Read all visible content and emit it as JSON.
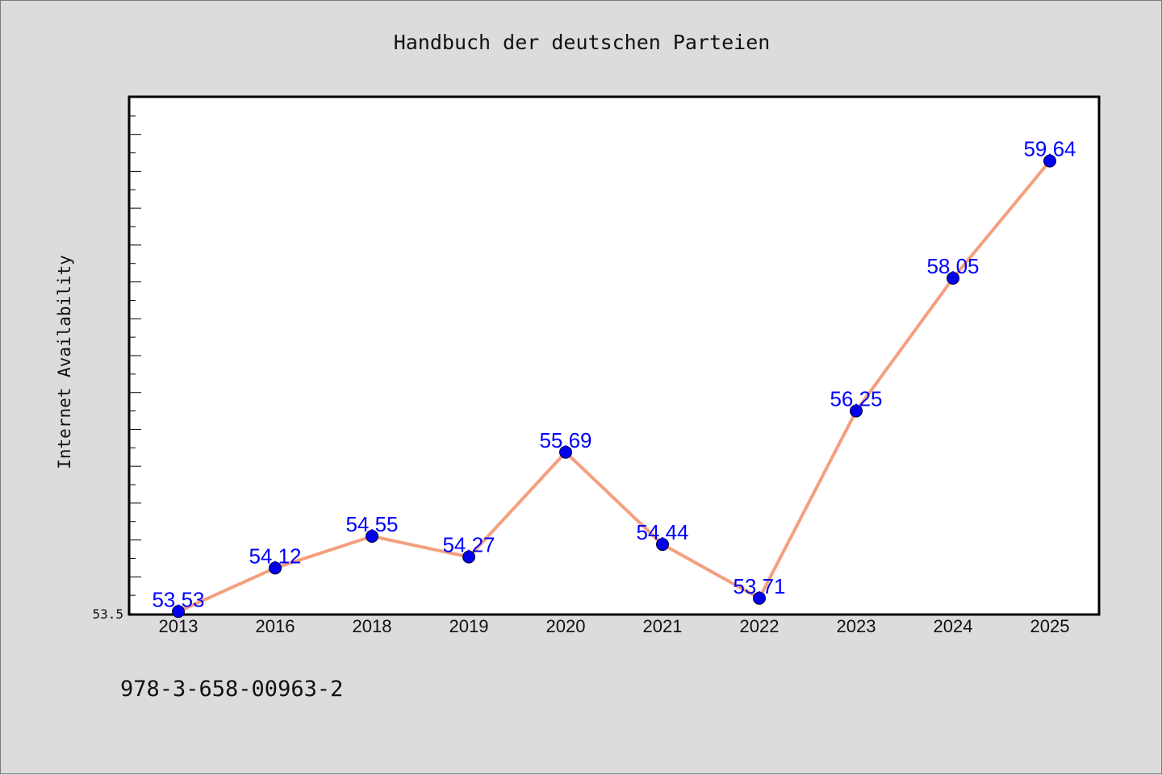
{
  "chart_data": {
    "type": "line",
    "title": "Handbuch der deutschen Parteien",
    "ylabel": "Internet Availability",
    "xlabel": "",
    "categories": [
      "2013",
      "2016",
      "2018",
      "2019",
      "2020",
      "2021",
      "2022",
      "2023",
      "2024",
      "2025"
    ],
    "series": [
      {
        "values": [
          53.53,
          54.12,
          54.55,
          54.27,
          55.69,
          54.44,
          53.71,
          56.25,
          58.05,
          59.64
        ],
        "data_labels": [
          "53.53",
          "54.12",
          "54.55",
          "54.27",
          "55.69",
          "54.44",
          "53.71",
          "56.25",
          "58.05",
          "59.64"
        ]
      }
    ],
    "ylim": [
      53.5,
      60.5
    ],
    "y_tick_labels": [
      "53.5"
    ],
    "grid": false,
    "legend": "none",
    "colors": {
      "line": "#f4a07e",
      "marker": "#0000ee",
      "data_label": "#0000ff"
    }
  },
  "footer": {
    "isbn": "978-3-658-00963-2"
  }
}
